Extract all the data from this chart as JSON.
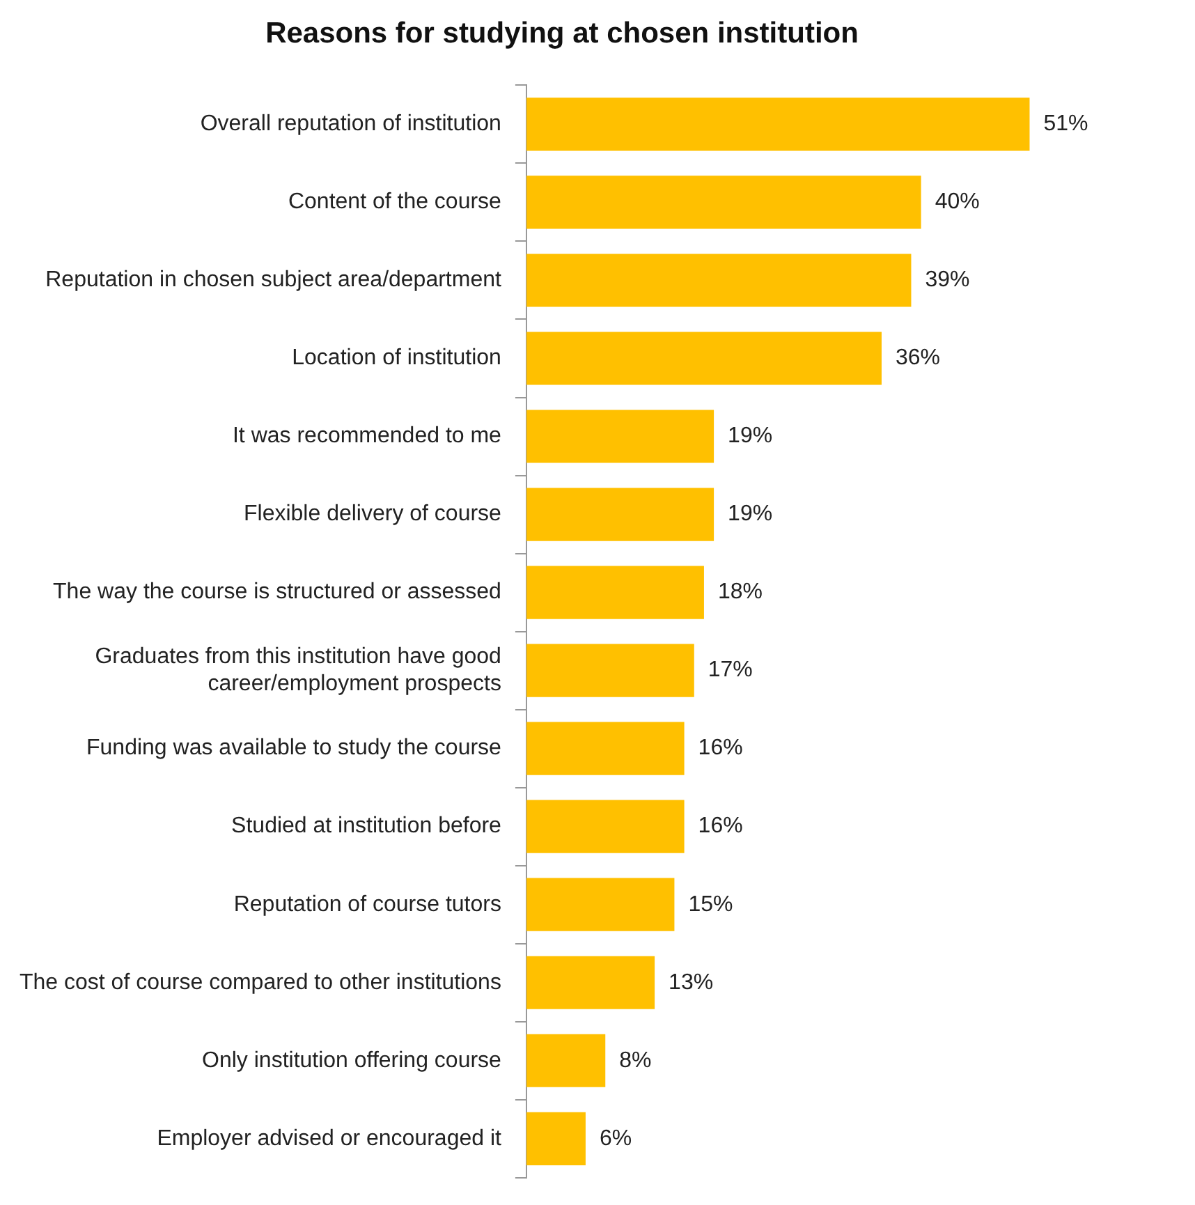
{
  "chart_data": {
    "type": "bar",
    "orientation": "horizontal",
    "title": "Reasons for studying at chosen institution",
    "categories": [
      "Overall reputation of institution",
      "Content of the course",
      "Reputation in chosen subject area/department",
      "Location of institution",
      "It was recommended to me",
      "Flexible delivery of course",
      "The way the course is structured or assessed",
      "Graduates from this institution have good career/employment prospects",
      "Funding was available to study the course",
      "Studied at institution before",
      "Reputation of course tutors",
      "The cost of course compared to other institutions",
      "Only institution offering course",
      "Employer advised or encouraged it"
    ],
    "values": [
      51,
      40,
      39,
      36,
      19,
      19,
      18,
      17,
      16,
      16,
      15,
      13,
      8,
      6
    ],
    "value_labels": [
      "51%",
      "40%",
      "39%",
      "36%",
      "19%",
      "19%",
      "18%",
      "17%",
      "16%",
      "16%",
      "15%",
      "13%",
      "8%",
      "6%"
    ],
    "color": "#ffc000"
  }
}
